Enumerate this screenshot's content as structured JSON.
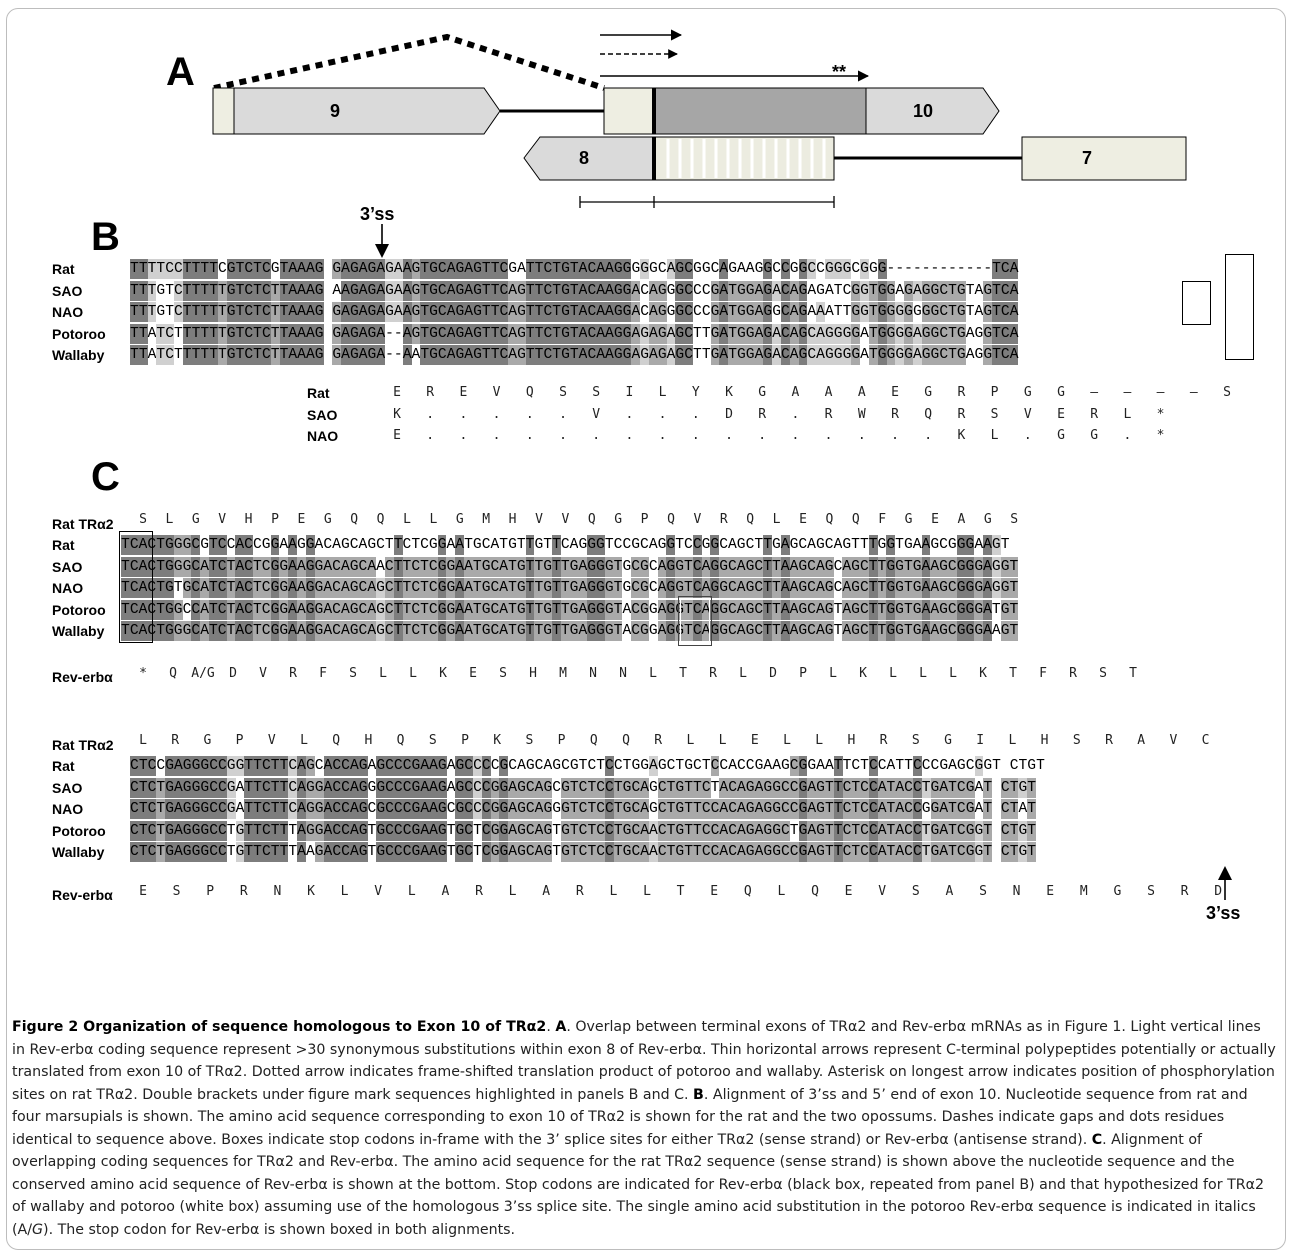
{
  "panels": {
    "a": "A",
    "b": "B",
    "c": "C"
  },
  "panel_a": {
    "exon9": "9",
    "exon10": "10",
    "exon8": "8",
    "exon7": "7",
    "asterisks": "**"
  },
  "ss3_top": "3’ss",
  "ss3_bottom": "3’ss",
  "panel_b": {
    "species": [
      "Rat",
      "SAO",
      "NAO",
      "Potoroo",
      "Wallaby"
    ],
    "seqs": [
      "TTTTCCTTTTCGTCTCGTAAAG GAGAGAGAAGTGCAGAGTTCGATTCTGTACAAGGGGGCAGCGGCAGAAGGCCGGCCGGGCGGG------------TCA",
      "TTTGTCTTTTTGTCTCTTAAAG AAGAGAGAAGTGCAGAGTTCAGTTCTGTACAAGGACAGGGCCCGATGGAGACAGAGATCGGTGGAGAGGCTGTAGTCA",
      "TTTGTCTTTTTGTCTCTTAAAG GAGAGAGAAGTGCAGAGTTCAGTTCTGTACAAGGACAGGGCCCGATGGAGGCAGAAATTGGTGGGGGGGCTGTAGTCA",
      "TTATCTTTTTTGTCTCTTAAAG GAGAGA--AGTGCAGAGTTCAGTTCTGTACAAGGAGAGAGCTTGATGGAGACAGCAGGGGATGGGGAGGCTGAGGTCA",
      "TTATCTTTTTTGTCTCTTAAAG GAGAGA--AATGCAGAGTTCAGTTCTGTACAAGGAGAGAGCTTGATGGAGACAGCAGGGGATGGGGAGGCTGAGGTCA"
    ],
    "aa_names": [
      "Rat",
      "SAO",
      "NAO"
    ],
    "aa_rows": [
      [
        "E",
        "R",
        "E",
        "V",
        "Q",
        "S",
        "S",
        "I",
        "L",
        "Y",
        "K",
        "G",
        "A",
        "A",
        "A",
        "E",
        "G",
        "R",
        "P",
        "G",
        "G",
        "–",
        "–",
        "–",
        "–",
        "S"
      ],
      [
        "K",
        ".",
        ".",
        ".",
        ".",
        ".",
        "V",
        ".",
        ".",
        ".",
        "D",
        "R",
        ".",
        "R",
        "W",
        "R",
        "Q",
        "R",
        "S",
        "V",
        "E",
        "R",
        "L",
        "*",
        "",
        ""
      ],
      [
        "E",
        ".",
        ".",
        ".",
        ".",
        ".",
        ".",
        ".",
        ".",
        ".",
        ".",
        ".",
        ".",
        ".",
        ".",
        ".",
        ".",
        "K",
        "L",
        ".",
        "G",
        "G",
        ".",
        "*",
        "",
        ""
      ]
    ]
  },
  "panel_c": {
    "block1": {
      "rat_tra2_label": "Rat TRα2",
      "rat_tra2": "S L G V H P E G Q Q L L G M H V V Q G P Q V R Q L E Q Q F G E A G S",
      "species": [
        "Rat",
        "SAO",
        "NAO",
        "Potoroo",
        "Wallaby"
      ],
      "seqs": [
        "TCACTGGGCGTCCACCGGAAGGACAGCAGCTTCTCGGAATGCATGTTGTTCAGGGTCCGCAGGTCCGGCAGCTTGAGCAGCAGTTTGGTGAAGCGGGAAGT",
        "TCACTGGGCATCTACTCGGAAGGACAGCAACTTCTCGGAATGCATGTTGTTGAGGGTGCGCAGGTCAGGCAGCTTAAGCAGCAGCTTGGTGAAGCGGGAGGT",
        "TCACTGTGCATCTACTCGGAAGGACAGCAGCTTCTCGGAATGCATGTTGTTGAGGGTGCGCAGGTCAGGCAGCTTAAGCAGCAGCTTGGTGAAGCGGGAGGT",
        "TCACTGGCCATCTACTCGGAAGGACAGCAGCTTCTCGGAATGCATGTTGTTGAGGGTACGGAGGTCAGGCAGCTTAAGCAGTAGCTTGGTGAAGCGGGATGT",
        "TCACTGGGCATCTACTCGGAAGGACAGCAGCTTCTCGGAATGCATGTTGTTGAGGGTACGGAGGTCAGGCAGCTTAAGCAGTAGCTTGGTGAAGCGGGAAGT"
      ],
      "rev_label": "Rev-erbα",
      "rev": [
        "*",
        "Q",
        "A/G",
        "D",
        "V",
        "R",
        "F",
        "S",
        "L",
        "L",
        "K",
        "E",
        "S",
        "H",
        "M",
        "N",
        "N",
        "L",
        "T",
        "R",
        "L",
        "D",
        "P",
        "L",
        "K",
        "L",
        "L",
        "L",
        "K",
        "T",
        "F",
        "R",
        "S",
        "T"
      ]
    },
    "block2": {
      "rat_tra2_label": "Rat TRα2",
      "rat_tra2": [
        "L",
        "R",
        "G",
        "P",
        "V",
        "L",
        "Q",
        "H",
        "Q",
        "S",
        "P",
        "K",
        "S",
        "P",
        "Q",
        "Q",
        "R",
        "L",
        "L",
        "E",
        "L",
        "L",
        "H",
        "R",
        "S",
        "G",
        "I",
        "L",
        "H",
        "S",
        "R",
        "A",
        "V",
        "C"
      ],
      "species": [
        "Rat",
        "SAO",
        "NAO",
        "Potoroo",
        "Wallaby"
      ],
      "seqs": [
        "CTCCGAGGGCCGGTTCTTCAGCACCAGAGCCCGAAGAGCCCCGCAGCAGCGTCTCCTGGAGCTGCTCCACCGAAGCGGAATTCTCCATTCCCGAGCGGT CTGT",
        "CTCTGAGGGCCGATTCTTCAGGACCAGGGCCCGAAGAGCCCGGAGCAGCGTCTCCTGCAGCTGTTCTACAGAGGCCGAGTTCTCCATACCTGATCGAT CTGT",
        "CTCTGAGGGCCGATTCTTCAGGACCAGCGCCCGAAGCGCCCGGAGCAGGGTCTCCTGCAGCTGTTCCACAGAGGCCGAGTTCTCCATACCGGATCGAT CTAT",
        "CTCTGAGGGCCTGTTCTTTAGGACCAGTGCCCGAAGTGCTCGGAGCAGTGTCTCCTGCAACTGTTCCACAGAGGCTGAGTTCTCCATACCTGATCGGT CTGT",
        "CTCTGAGGGCCTGTTCTTTAAGACCAGTGCCCGAAGTGCTCGGAGCAGTGTCTCCTGCAACTGTTCCACAGAGGCCGAGTTCTCCATACCTGATCGGT CTGT"
      ],
      "rev_label": "Rev-erbα",
      "rev": [
        "E",
        "S",
        "P",
        "R",
        "N",
        "K",
        "L",
        "V",
        "L",
        "A",
        "R",
        "L",
        "A",
        "R",
        "L",
        "L",
        "T",
        "E",
        "Q",
        "L",
        "Q",
        "E",
        "V",
        "S",
        "A",
        "S",
        "N",
        "E",
        "M",
        "G",
        "S",
        "R",
        "D"
      ]
    }
  },
  "caption": [
    {
      "b": true,
      "t": "Figure 2 Organization of sequence homologous to Exon 10 of TRα2"
    },
    {
      "t": ". "
    },
    {
      "b": true,
      "t": "A"
    },
    {
      "t": ". Overlap between terminal exons of TRα2 and Rev-erbα mRNAs as in Figure 1. Light vertical lines in Rev-erbα coding sequence represent >30 synonymous substitutions within exon 8 of Rev-erbα. Thin horizontal arrows represent C-terminal polypeptides potentially or actually translated from exon 10 of TRα2. Dotted arrow indicates frame-shifted translation product of potoroo and wallaby. Asterisk on longest arrow indicates position of phosphorylation sites on rat TRα2. Double brackets under figure mark sequences highlighted in panels B and C. "
    },
    {
      "b": true,
      "t": "B"
    },
    {
      "t": ". Alignment of 3’ss and 5’ end of exon 10. Nucleotide sequence from rat and four marsupials is shown. The amino acid sequence corresponding to exon 10 of TRα2 is shown for the rat and the two opossums. Dashes indicate gaps and dots residues identical to sequence above. Boxes indicate stop codons in-frame with the 3’ splice sites for either TRα2 (sense strand) or Rev-erbα (antisense strand). "
    },
    {
      "b": true,
      "t": "C"
    },
    {
      "t": ". Alignment of overlapping coding sequences for TRα2 and Rev-erbα. The amino acid sequence for the rat TRα2 sequence (sense strand) is shown above the nucleotide sequence and the conserved amino acid sequence of Rev-erbα is shown at the bottom. Stop codons are indicated for Rev-erbα (black box, repeated from panel B) and that hypothesized for TRα2 of wallaby and potoroo (white box) assuming use of the homologous 3’ss splice site. The single amino acid substitution in the potoroo Rev-erbα sequence is indicated in italics (A/"
    },
    {
      "i": true,
      "t": "G"
    },
    {
      "t": "). The stop codon for Rev-erbα is shown boxed in both alignments."
    }
  ]
}
